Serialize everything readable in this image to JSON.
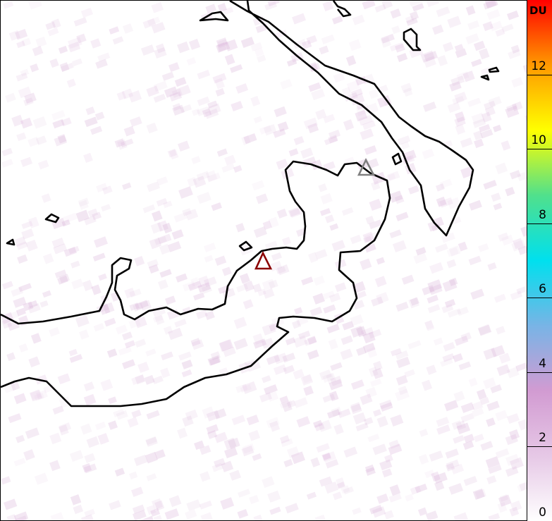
{
  "colorbar": {
    "unit_label": "DU",
    "min": 0,
    "max": 14,
    "ticks": [
      "0",
      "2",
      "4",
      "6",
      "8",
      "10",
      "12"
    ],
    "colors": [
      "#ffffff",
      "#e6c8e6",
      "#d29bd2",
      "#78b4e6",
      "#00e0ee",
      "#50e08c",
      "#ffff00",
      "#ff9900",
      "#ff0000"
    ]
  },
  "map": {
    "coastline_color": "#000000",
    "background_noise_color": "#d9b3d9",
    "volcanoes": [
      {
        "icon": "triangle-volcano-icon",
        "color": "#8b0000"
      },
      {
        "icon": "triangle-volcano-icon",
        "color": "#808080"
      }
    ]
  }
}
